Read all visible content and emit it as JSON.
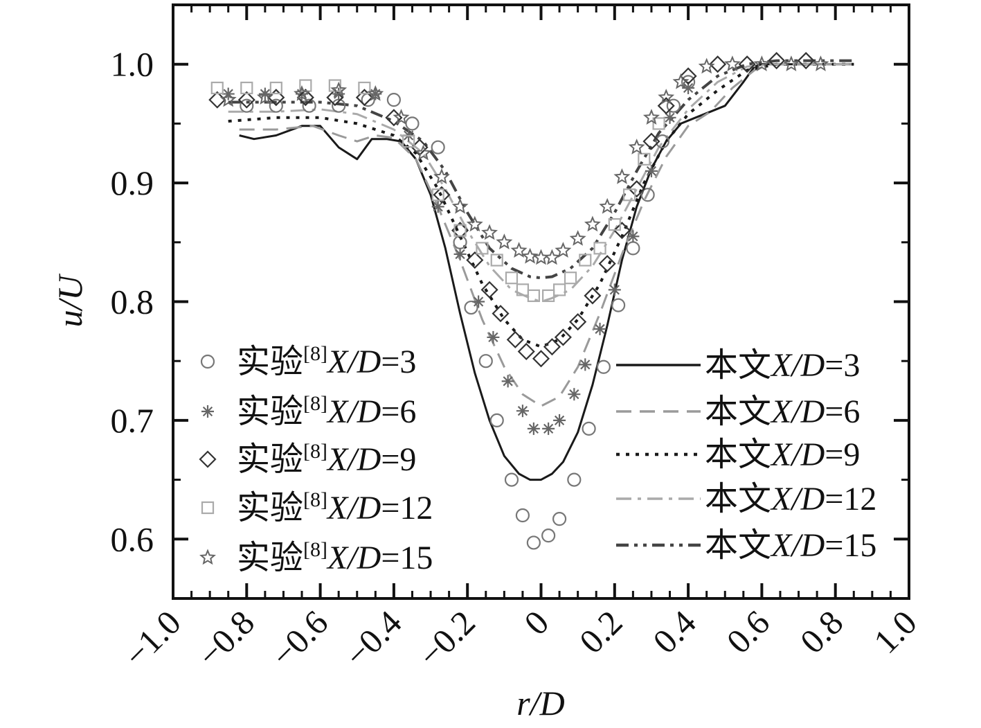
{
  "chart_data": {
    "type": "line",
    "xlabel": "r/D",
    "ylabel": "u/U",
    "xlim": [
      -1.0,
      1.0
    ],
    "ylim": [
      0.55,
      1.05
    ],
    "xticks": [
      -1.0,
      -0.8,
      -0.6,
      -0.4,
      -0.2,
      0,
      0.2,
      0.4,
      0.6,
      0.8,
      1.0
    ],
    "xtick_labels": [
      "−1.0",
      "−0.8",
      "−0.6",
      "−0.4",
      "−0.2",
      "0",
      "0.2",
      "0.4",
      "0.6",
      "0.8",
      "1.0"
    ],
    "yticks": [
      0.6,
      0.7,
      0.8,
      0.9,
      1.0
    ],
    "ytick_labels": [
      "0.6",
      "0.7",
      "0.8",
      "0.9",
      "1.0"
    ],
    "grid": false,
    "legend_left": "bottom-left",
    "legend_right": "bottom-right",
    "experimental_series": [
      {
        "label_prefix": "实验",
        "label_ref": "[8]",
        "label_var": "X/D",
        "label_eq": "=3",
        "marker": "circle",
        "x": [
          -0.8,
          -0.72,
          -0.63,
          -0.55,
          -0.47,
          -0.4,
          -0.35,
          -0.28,
          -0.22,
          -0.19,
          -0.15,
          -0.12,
          -0.08,
          -0.05,
          -0.02,
          0.02,
          0.05,
          0.09,
          0.13,
          0.17,
          0.21,
          0.25,
          0.29,
          0.33,
          0.36,
          0.4
        ],
        "y": [
          0.965,
          0.965,
          0.965,
          0.965,
          0.97,
          0.97,
          0.95,
          0.93,
          0.85,
          0.795,
          0.75,
          0.7,
          0.65,
          0.62,
          0.597,
          0.603,
          0.617,
          0.65,
          0.693,
          0.745,
          0.797,
          0.845,
          0.89,
          0.935,
          0.965,
          0.985
        ]
      },
      {
        "label_prefix": "实验",
        "label_ref": "[8]",
        "label_var": "X/D",
        "label_eq": "=6",
        "marker": "asterisk",
        "x": [
          -0.85,
          -0.75,
          -0.65,
          -0.55,
          -0.45,
          -0.36,
          -0.28,
          -0.22,
          -0.17,
          -0.13,
          -0.09,
          -0.05,
          -0.02,
          0.02,
          0.05,
          0.09,
          0.12,
          0.16,
          0.2,
          0.25,
          0.3,
          0.35,
          0.4
        ],
        "y": [
          0.975,
          0.975,
          0.975,
          0.975,
          0.975,
          0.94,
          0.88,
          0.84,
          0.8,
          0.77,
          0.733,
          0.708,
          0.693,
          0.693,
          0.7,
          0.722,
          0.747,
          0.777,
          0.81,
          0.855,
          0.91,
          0.955,
          0.98
        ]
      },
      {
        "label_prefix": "实验",
        "label_ref": "[8]",
        "label_var": "X/D",
        "label_eq": "=9",
        "marker": "diamond",
        "x": [
          -0.88,
          -0.8,
          -0.72,
          -0.64,
          -0.56,
          -0.48,
          -0.4,
          -0.33,
          -0.27,
          -0.22,
          -0.18,
          -0.14,
          -0.11,
          -0.07,
          -0.04,
          0.0,
          0.03,
          0.06,
          0.1,
          0.14,
          0.18,
          0.22,
          0.26,
          0.3,
          0.34,
          0.4,
          0.48,
          0.56,
          0.64,
          0.72
        ],
        "y": [
          0.97,
          0.97,
          0.972,
          0.972,
          0.972,
          0.972,
          0.955,
          0.93,
          0.89,
          0.86,
          0.835,
          0.81,
          0.79,
          0.768,
          0.758,
          0.752,
          0.762,
          0.77,
          0.783,
          0.805,
          0.832,
          0.86,
          0.895,
          0.935,
          0.965,
          0.99,
          1.0,
          1.0,
          1.003,
          1.003
        ]
      },
      {
        "label_prefix": "实验",
        "label_ref": "[8]",
        "label_var": "X/D",
        "label_eq": "=12",
        "marker": "square",
        "x": [
          -0.88,
          -0.8,
          -0.72,
          -0.64,
          -0.56,
          -0.48,
          -0.36,
          -0.28,
          -0.22,
          -0.16,
          -0.12,
          -0.08,
          -0.05,
          -0.02,
          0.02,
          0.05,
          0.08,
          0.12,
          0.16,
          0.2,
          0.24,
          0.28,
          0.32
        ],
        "y": [
          0.98,
          0.98,
          0.98,
          0.982,
          0.982,
          0.98,
          0.935,
          0.89,
          0.86,
          0.845,
          0.835,
          0.82,
          0.81,
          0.805,
          0.805,
          0.81,
          0.82,
          0.835,
          0.845,
          0.865,
          0.89,
          0.92,
          0.95
        ]
      },
      {
        "label_prefix": "实验",
        "label_ref": "[8]",
        "label_var": "X/D",
        "label_eq": "=15",
        "marker": "star",
        "x": [
          -0.85,
          -0.75,
          -0.65,
          -0.55,
          -0.45,
          -0.38,
          -0.32,
          -0.27,
          -0.22,
          -0.18,
          -0.14,
          -0.1,
          -0.06,
          -0.03,
          0.0,
          0.03,
          0.06,
          0.1,
          0.14,
          0.18,
          0.22,
          0.26,
          0.3,
          0.34,
          0.38,
          0.45,
          0.52,
          0.6,
          0.68,
          0.76
        ],
        "y": [
          0.97,
          0.972,
          0.975,
          0.978,
          0.975,
          0.955,
          0.925,
          0.905,
          0.88,
          0.865,
          0.858,
          0.85,
          0.843,
          0.838,
          0.837,
          0.837,
          0.843,
          0.853,
          0.865,
          0.88,
          0.905,
          0.93,
          0.955,
          0.972,
          0.985,
          0.998,
          1.0,
          1.0,
          1.0,
          1.0
        ]
      }
    ],
    "model_series": [
      {
        "label_prefix": "本文",
        "label_var": "X/D",
        "label_eq": "=3",
        "style": "solid",
        "x": [
          -0.82,
          -0.78,
          -0.72,
          -0.65,
          -0.6,
          -0.55,
          -0.5,
          -0.46,
          -0.42,
          -0.38,
          -0.34,
          -0.3,
          -0.26,
          -0.22,
          -0.18,
          -0.14,
          -0.1,
          -0.06,
          -0.03,
          0.0,
          0.03,
          0.06,
          0.1,
          0.14,
          0.18,
          0.22,
          0.26,
          0.3,
          0.34,
          0.38,
          0.42,
          0.46,
          0.5,
          0.55,
          0.58,
          0.6,
          0.65,
          0.72,
          0.8,
          0.85
        ],
        "y": [
          0.94,
          0.937,
          0.94,
          0.948,
          0.948,
          0.93,
          0.92,
          0.937,
          0.937,
          0.935,
          0.92,
          0.89,
          0.845,
          0.79,
          0.74,
          0.7,
          0.67,
          0.655,
          0.65,
          0.65,
          0.655,
          0.665,
          0.69,
          0.73,
          0.78,
          0.835,
          0.88,
          0.912,
          0.935,
          0.95,
          0.955,
          0.96,
          0.965,
          0.985,
          0.998,
          1.0,
          1.0,
          1.0,
          1.0,
          1.0
        ]
      },
      {
        "label_prefix": "本文",
        "label_var": "X/D",
        "label_eq": "=6",
        "style": "dashed",
        "x": [
          -0.82,
          -0.72,
          -0.62,
          -0.55,
          -0.5,
          -0.45,
          -0.4,
          -0.34,
          -0.28,
          -0.22,
          -0.16,
          -0.1,
          -0.05,
          0.0,
          0.05,
          0.1,
          0.16,
          0.22,
          0.28,
          0.34,
          0.4,
          0.46,
          0.52,
          0.58,
          0.62,
          0.7,
          0.85
        ],
        "y": [
          0.945,
          0.945,
          0.948,
          0.94,
          0.935,
          0.94,
          0.938,
          0.92,
          0.88,
          0.835,
          0.785,
          0.745,
          0.722,
          0.712,
          0.72,
          0.745,
          0.79,
          0.84,
          0.885,
          0.922,
          0.948,
          0.96,
          0.98,
          0.995,
          1.0,
          1.0,
          1.0
        ]
      },
      {
        "label_prefix": "本文",
        "label_var": "X/D",
        "label_eq": "=9",
        "style": "dotted",
        "x": [
          -0.85,
          -0.72,
          -0.6,
          -0.5,
          -0.4,
          -0.34,
          -0.28,
          -0.22,
          -0.16,
          -0.1,
          -0.05,
          0.0,
          0.05,
          0.1,
          0.16,
          0.22,
          0.28,
          0.34,
          0.4,
          0.48,
          0.56,
          0.64,
          0.85
        ],
        "y": [
          0.952,
          0.955,
          0.955,
          0.95,
          0.94,
          0.925,
          0.895,
          0.855,
          0.815,
          0.785,
          0.768,
          0.762,
          0.768,
          0.785,
          0.815,
          0.855,
          0.9,
          0.935,
          0.958,
          0.978,
          0.995,
          1.0,
          1.0
        ]
      },
      {
        "label_prefix": "本文",
        "label_var": "X/D",
        "label_eq": "=12",
        "style": "dashdot",
        "x": [
          -0.85,
          -0.72,
          -0.6,
          -0.5,
          -0.4,
          -0.32,
          -0.26,
          -0.2,
          -0.14,
          -0.08,
          -0.03,
          0.0,
          0.03,
          0.08,
          0.14,
          0.2,
          0.26,
          0.32,
          0.4,
          0.48,
          0.56,
          0.64,
          0.85
        ],
        "y": [
          0.96,
          0.96,
          0.962,
          0.958,
          0.945,
          0.925,
          0.895,
          0.86,
          0.83,
          0.81,
          0.803,
          0.8,
          0.803,
          0.81,
          0.83,
          0.86,
          0.895,
          0.93,
          0.962,
          0.985,
          0.998,
          1.0,
          1.0
        ]
      },
      {
        "label_prefix": "本文",
        "label_var": "X/D",
        "label_eq": "=15",
        "style": "dashdotdot",
        "x": [
          -0.85,
          -0.72,
          -0.6,
          -0.5,
          -0.4,
          -0.32,
          -0.26,
          -0.2,
          -0.14,
          -0.08,
          -0.03,
          0.0,
          0.03,
          0.08,
          0.14,
          0.2,
          0.26,
          0.32,
          0.4,
          0.48,
          0.56,
          0.64,
          0.85
        ],
        "y": [
          0.968,
          0.968,
          0.968,
          0.965,
          0.952,
          0.935,
          0.91,
          0.875,
          0.845,
          0.828,
          0.821,
          0.82,
          0.821,
          0.828,
          0.845,
          0.875,
          0.91,
          0.942,
          0.97,
          0.99,
          1.0,
          1.003,
          1.003
        ]
      }
    ]
  }
}
